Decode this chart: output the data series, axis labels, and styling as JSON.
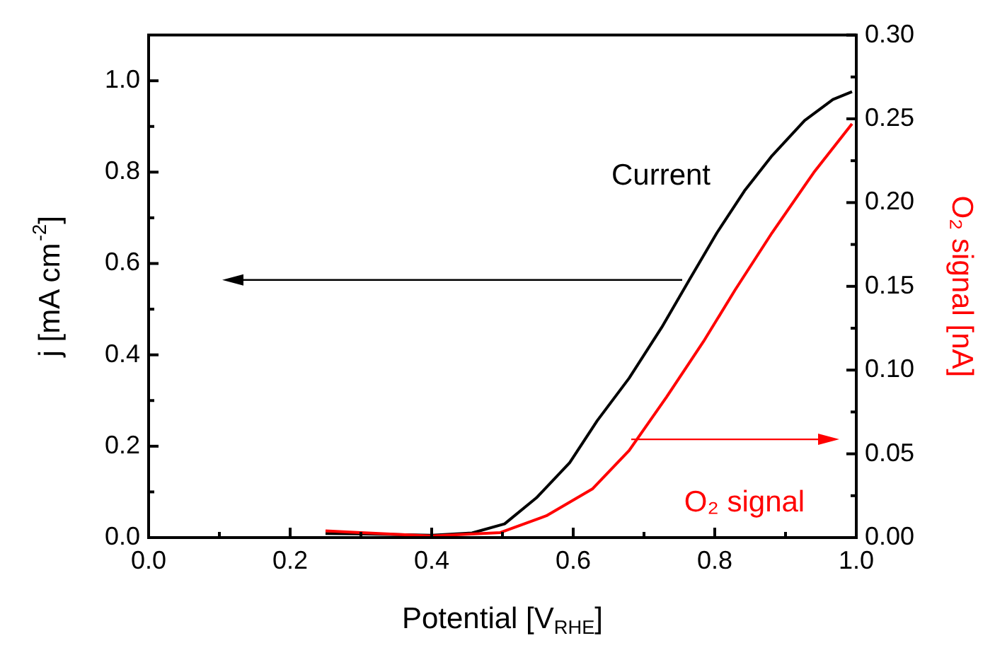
{
  "chart_data": {
    "type": "line",
    "xlabel": "Potential [V$_{RHE}$]",
    "ylabel": "j [mA cm$^{-2}$]",
    "y2label": "O₂ signal [nA]",
    "xlim": [
      0,
      1
    ],
    "xticks": [
      {
        "value": 0,
        "label": "0.0"
      },
      {
        "value": 0.1,
        "label": null
      },
      0.2,
      {
        "value": 0.3,
        "label": null
      },
      0.4,
      {
        "value": 0.5,
        "label": null
      },
      0.6,
      {
        "value": 0.7,
        "label": null
      },
      0.8,
      {
        "value": 0.9,
        "label": null
      },
      {
        "value": 1,
        "label": "1.0"
      }
    ],
    "ylim": [
      0,
      1.1
    ],
    "yticks": [
      {
        "value": 0,
        "label": "0.0"
      },
      {
        "value": 0.1,
        "label": null
      },
      0.2,
      {
        "value": 0.3,
        "label": null
      },
      0.4,
      {
        "value": 0.5,
        "label": null
      },
      0.6,
      {
        "value": 0.7,
        "label": null
      },
      0.8,
      {
        "value": 0.9,
        "label": null
      },
      {
        "value": 1,
        "label": "1.0"
      }
    ],
    "y2lim": [
      0,
      0.3
    ],
    "y2ticks": [
      {
        "value": 0,
        "label": "0.00"
      },
      {
        "value": 0.025,
        "label": null
      },
      {
        "value": 0.05,
        "label": "0.05"
      },
      {
        "value": 0.075,
        "label": null
      },
      {
        "value": 0.1,
        "label": "0.10"
      },
      {
        "value": 0.125,
        "label": null
      },
      {
        "value": 0.15,
        "label": "0.15"
      },
      {
        "value": 0.175,
        "label": null
      },
      {
        "value": 0.2,
        "label": "0.20"
      },
      {
        "value": 0.225,
        "label": null
      },
      {
        "value": 0.25,
        "label": "0.25"
      },
      {
        "value": 0.275,
        "label": null
      },
      {
        "value": 0.3,
        "label": "0.30"
      }
    ],
    "legend": false,
    "grid": false,
    "marker": "none",
    "line_style": "solid",
    "series": [
      {
        "name": "Current",
        "color": "#000000",
        "x": [
          0.25,
          0.3,
          0.4,
          0.457,
          0.503,
          0.548,
          0.595,
          0.634,
          0.679,
          0.725,
          0.764,
          0.803,
          0.842,
          0.881,
          0.927,
          0.967,
          0.994
        ],
        "values": [
          0.009,
          0.008,
          0.005,
          0.01,
          0.03,
          0.087,
          0.164,
          0.256,
          0.349,
          0.46,
          0.564,
          0.667,
          0.759,
          0.836,
          0.913,
          0.959,
          0.976
        ]
      },
      {
        "name": "O₂ signal",
        "color": "#ff0000",
        "axis": "y2",
        "x": [
          0.25,
          0.3,
          0.399,
          0.497,
          0.562,
          0.627,
          0.679,
          0.732,
          0.784,
          0.829,
          0.881,
          0.94,
          0.994
        ],
        "values": [
          0.004,
          0.003,
          0.001,
          0.003,
          0.013,
          0.029,
          0.052,
          0.084,
          0.117,
          0.148,
          0.182,
          0.218,
          0.247
        ]
      }
    ]
  }
}
